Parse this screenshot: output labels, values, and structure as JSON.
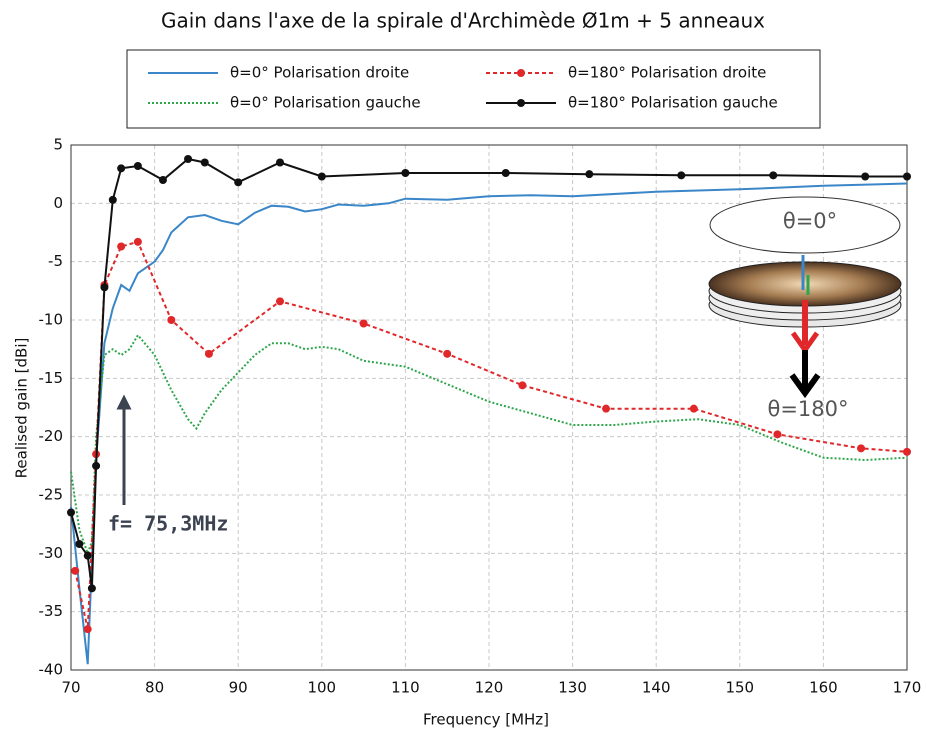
{
  "chart_data": {
    "type": "line",
    "title": "Gain dans l'axe de la spirale d'Archimède Ø1m + 5 anneaux",
    "x_label": "Frequency [MHz]",
    "y_label": "Realised gain [dBi]",
    "xlim": [
      70,
      170
    ],
    "xticks": [
      70,
      80,
      90,
      100,
      110,
      120,
      130,
      140,
      150,
      160,
      170
    ],
    "ylim": [
      -40,
      5
    ],
    "yticks": [
      -40,
      -35,
      -30,
      -25,
      -20,
      -15,
      -10,
      -5,
      0,
      5
    ],
    "grid": true,
    "legend": "top",
    "series": [
      {
        "name": "θ=0° Polarisation droite",
        "color": "#3a86c8",
        "dash": "solid",
        "markers": false,
        "x": [
          70,
          71,
          72,
          73,
          74,
          75,
          76,
          77,
          78,
          80,
          81,
          82,
          84,
          86,
          88,
          90,
          92,
          94,
          96,
          98,
          100,
          102,
          105,
          108,
          110,
          115,
          120,
          125,
          130,
          140,
          150,
          160,
          170
        ],
        "values": [
          -26,
          -33,
          -39.5,
          -22,
          -12,
          -9,
          -7,
          -7.5,
          -6,
          -5,
          -4,
          -2.5,
          -1.2,
          -1,
          -1.5,
          -1.8,
          -0.8,
          -0.2,
          -0.3,
          -0.7,
          -0.5,
          -0.1,
          -0.2,
          0,
          0.4,
          0.3,
          0.6,
          0.7,
          0.6,
          1,
          1.2,
          1.5,
          1.7
        ]
      },
      {
        "name": "θ=0° Polarisation gauche",
        "color": "#2ea64a",
        "dash": "dotted",
        "markers": false,
        "x": [
          70,
          71,
          72,
          72.5,
          73,
          74,
          75,
          76,
          77,
          78,
          80,
          82,
          84,
          85,
          86,
          88,
          90,
          92,
          94,
          96,
          98,
          100,
          102,
          105,
          110,
          115,
          120,
          125,
          130,
          135,
          140,
          145,
          150,
          155,
          160,
          165,
          170
        ],
        "values": [
          -23,
          -28,
          -30,
          -29,
          -20,
          -13,
          -12.5,
          -13,
          -12.5,
          -11.3,
          -13,
          -16,
          -18.5,
          -19.3,
          -18,
          -16,
          -14.5,
          -13,
          -12,
          -12,
          -12.5,
          -12.3,
          -12.5,
          -13.5,
          -14,
          -15.5,
          -17,
          -18,
          -19,
          -19,
          -18.7,
          -18.5,
          -19,
          -20.5,
          -21.8,
          -22,
          -21.8
        ]
      },
      {
        "name": "θ=180° Polarisation droite",
        "color": "#e0282a",
        "dash": "dashed",
        "markers": true,
        "x": [
          70.5,
          72,
          73,
          74,
          76,
          78,
          82,
          86.5,
          95,
          105,
          115,
          124,
          134,
          144.5,
          154.5,
          164.5,
          170
        ],
        "values": [
          -31.5,
          -36.5,
          -21.5,
          -7,
          -3.7,
          -3.3,
          -10,
          -12.9,
          -8.4,
          -10.3,
          -12.9,
          -15.6,
          -17.6,
          -17.6,
          -19.8,
          -21,
          -21.3
        ]
      },
      {
        "name": "θ=180° Polarisation gauche",
        "color": "#111111",
        "dash": "solid",
        "markers": true,
        "x": [
          70,
          71,
          72,
          72.5,
          73,
          74,
          75,
          76,
          78,
          81,
          84,
          86,
          90,
          95,
          100,
          110,
          122,
          132,
          143,
          154,
          165,
          170
        ],
        "values": [
          -26.5,
          -29.2,
          -30.2,
          -33,
          -22.5,
          -7.2,
          0.3,
          3,
          3.2,
          2,
          3.8,
          3.5,
          1.8,
          3.5,
          2.3,
          2.6,
          2.6,
          2.5,
          2.4,
          2.4,
          2.3,
          2.3
        ]
      }
    ],
    "annotations": [
      "f= 75,3MHz",
      "θ=0°",
      "θ=180°"
    ]
  }
}
